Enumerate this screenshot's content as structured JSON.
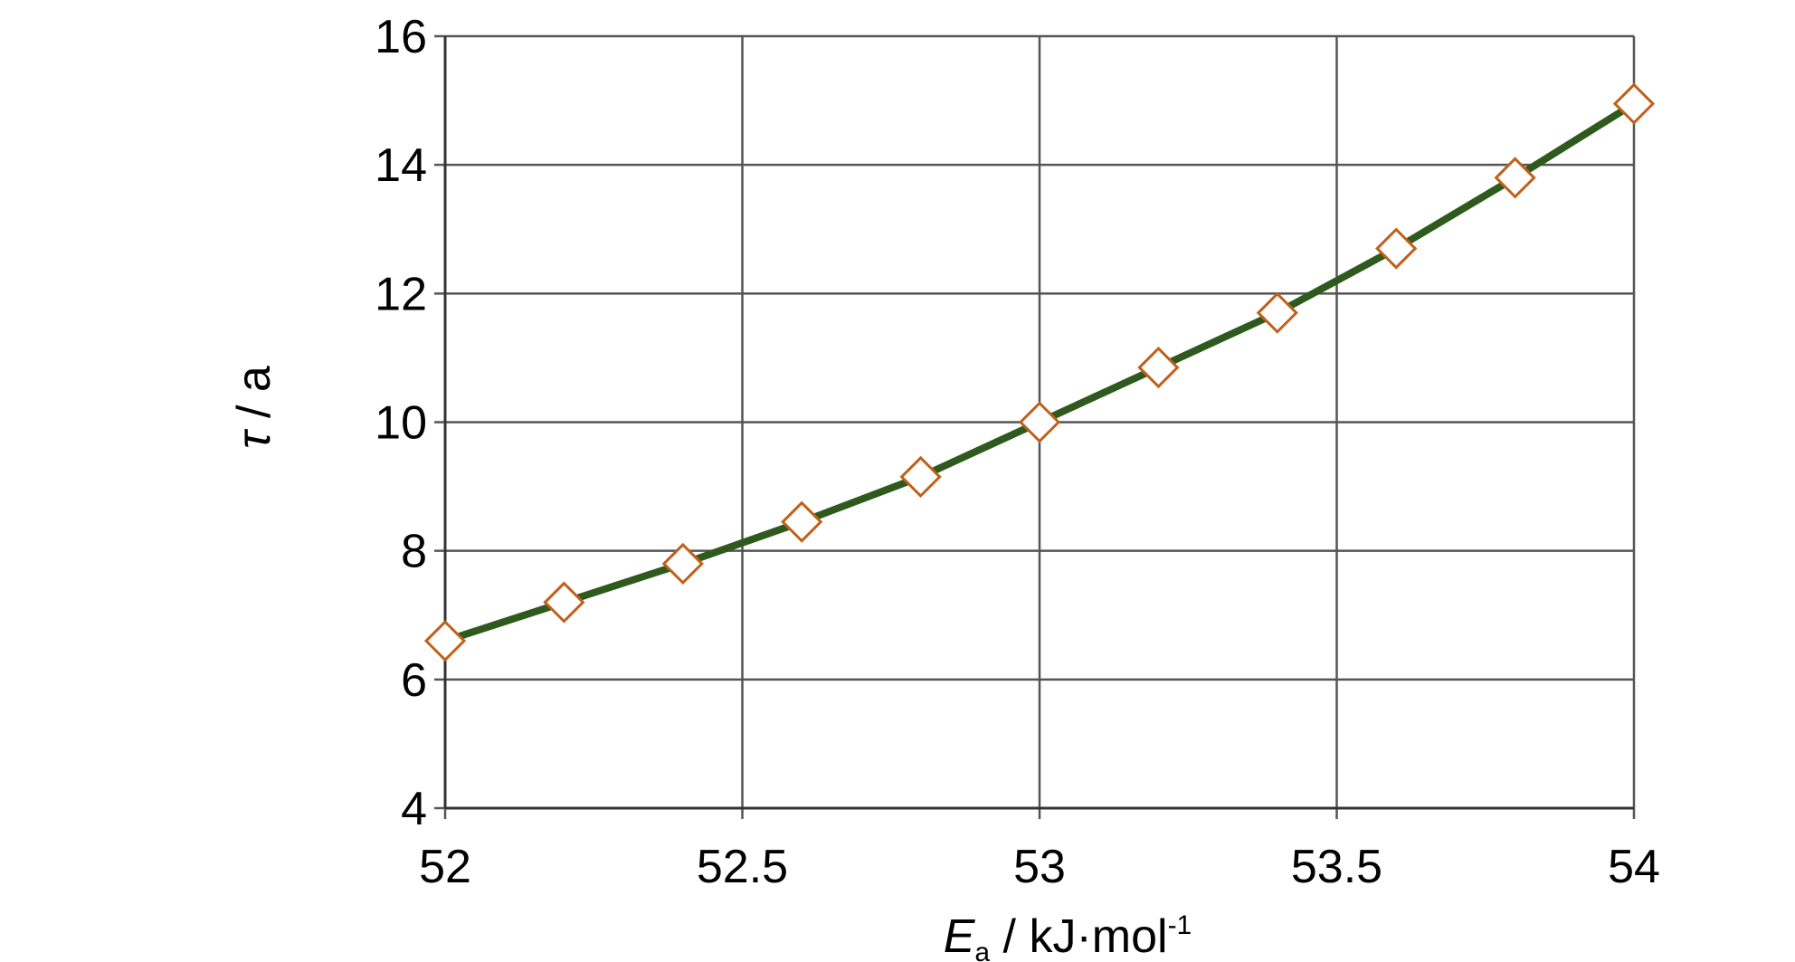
{
  "chart_data": {
    "type": "line",
    "x": [
      52.0,
      52.2,
      52.4,
      52.6,
      52.8,
      53.0,
      53.2,
      53.4,
      53.6,
      53.8,
      54.0
    ],
    "series": [
      {
        "values": [
          6.6,
          7.2,
          7.8,
          8.45,
          9.15,
          10.0,
          10.85,
          11.7,
          12.7,
          13.8,
          14.95
        ]
      }
    ],
    "xlabel_main": "E",
    "xlabel_sub": "a",
    "xlabel_rest": " / kJ·mol",
    "xlabel_sup": "-1",
    "ylabel_symbol": "τ",
    "ylabel_rest": " / a",
    "xlim": [
      52,
      54
    ],
    "ylim": [
      4,
      16
    ],
    "xticks": [
      "52",
      "52.5",
      "53",
      "53.5",
      "54"
    ],
    "yticks": [
      "4",
      "6",
      "8",
      "10",
      "12",
      "14",
      "16"
    ],
    "grid": true,
    "line_color": "#2f5a1e",
    "marker": "diamond",
    "marker_edge_color": "#c0601a",
    "marker_face_color": "#ffffff"
  }
}
